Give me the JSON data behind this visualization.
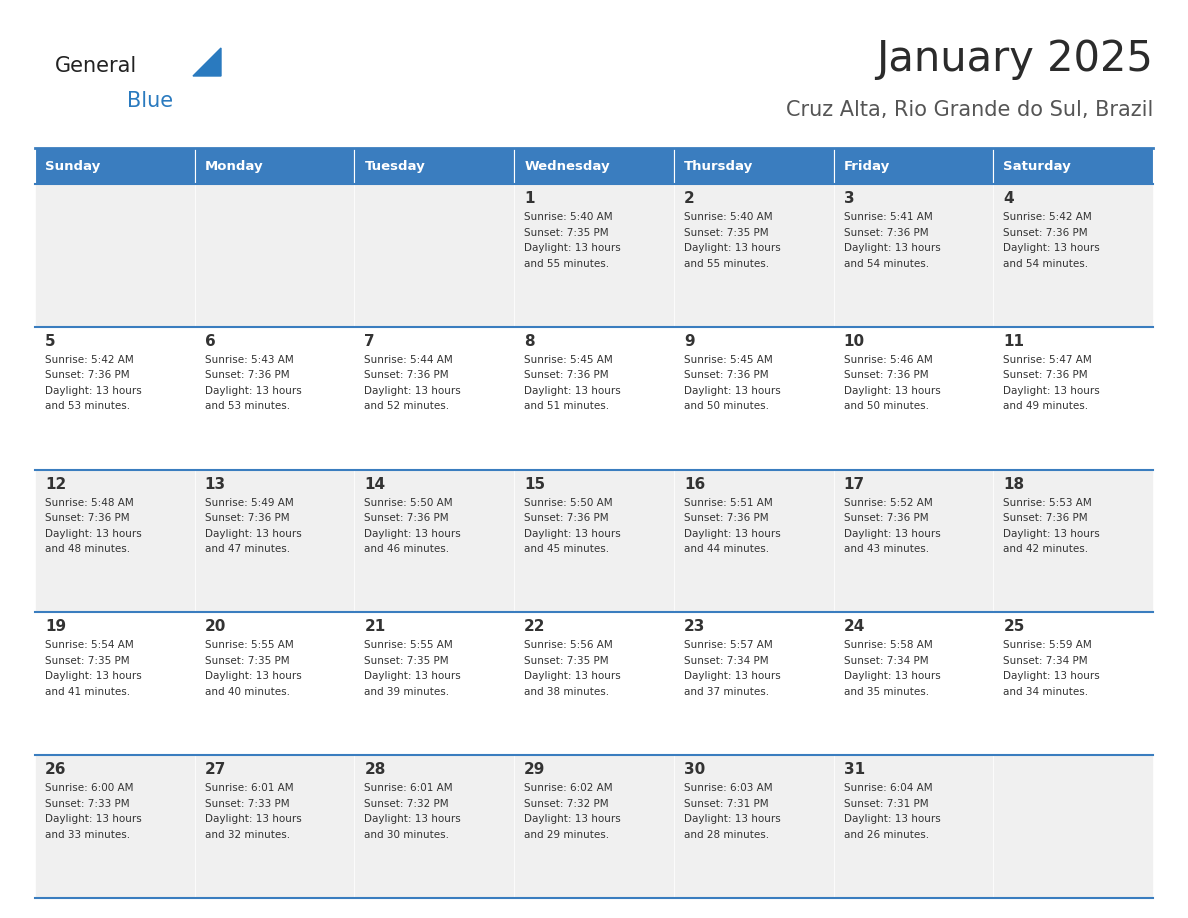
{
  "title": "January 2025",
  "subtitle": "Cruz Alta, Rio Grande do Sul, Brazil",
  "days_of_week": [
    "Sunday",
    "Monday",
    "Tuesday",
    "Wednesday",
    "Thursday",
    "Friday",
    "Saturday"
  ],
  "header_bg": "#3a7dbf",
  "header_text_color": "#ffffff",
  "row_bg_odd": "#f0f0f0",
  "row_bg_even": "#ffffff",
  "cell_text_color": "#333333",
  "border_color": "#3a7dbf",
  "title_color": "#2b2b2b",
  "subtitle_color": "#555555",
  "logo_general_color": "#222222",
  "logo_blue_color": "#2a7abf",
  "calendar_data": [
    {
      "day": 1,
      "col": 3,
      "row": 0,
      "sunrise": "5:40 AM",
      "sunset": "7:35 PM",
      "daylight": "13 hours and 55 minutes."
    },
    {
      "day": 2,
      "col": 4,
      "row": 0,
      "sunrise": "5:40 AM",
      "sunset": "7:35 PM",
      "daylight": "13 hours and 55 minutes."
    },
    {
      "day": 3,
      "col": 5,
      "row": 0,
      "sunrise": "5:41 AM",
      "sunset": "7:36 PM",
      "daylight": "13 hours and 54 minutes."
    },
    {
      "day": 4,
      "col": 6,
      "row": 0,
      "sunrise": "5:42 AM",
      "sunset": "7:36 PM",
      "daylight": "13 hours and 54 minutes."
    },
    {
      "day": 5,
      "col": 0,
      "row": 1,
      "sunrise": "5:42 AM",
      "sunset": "7:36 PM",
      "daylight": "13 hours and 53 minutes."
    },
    {
      "day": 6,
      "col": 1,
      "row": 1,
      "sunrise": "5:43 AM",
      "sunset": "7:36 PM",
      "daylight": "13 hours and 53 minutes."
    },
    {
      "day": 7,
      "col": 2,
      "row": 1,
      "sunrise": "5:44 AM",
      "sunset": "7:36 PM",
      "daylight": "13 hours and 52 minutes."
    },
    {
      "day": 8,
      "col": 3,
      "row": 1,
      "sunrise": "5:45 AM",
      "sunset": "7:36 PM",
      "daylight": "13 hours and 51 minutes."
    },
    {
      "day": 9,
      "col": 4,
      "row": 1,
      "sunrise": "5:45 AM",
      "sunset": "7:36 PM",
      "daylight": "13 hours and 50 minutes."
    },
    {
      "day": 10,
      "col": 5,
      "row": 1,
      "sunrise": "5:46 AM",
      "sunset": "7:36 PM",
      "daylight": "13 hours and 50 minutes."
    },
    {
      "day": 11,
      "col": 6,
      "row": 1,
      "sunrise": "5:47 AM",
      "sunset": "7:36 PM",
      "daylight": "13 hours and 49 minutes."
    },
    {
      "day": 12,
      "col": 0,
      "row": 2,
      "sunrise": "5:48 AM",
      "sunset": "7:36 PM",
      "daylight": "13 hours and 48 minutes."
    },
    {
      "day": 13,
      "col": 1,
      "row": 2,
      "sunrise": "5:49 AM",
      "sunset": "7:36 PM",
      "daylight": "13 hours and 47 minutes."
    },
    {
      "day": 14,
      "col": 2,
      "row": 2,
      "sunrise": "5:50 AM",
      "sunset": "7:36 PM",
      "daylight": "13 hours and 46 minutes."
    },
    {
      "day": 15,
      "col": 3,
      "row": 2,
      "sunrise": "5:50 AM",
      "sunset": "7:36 PM",
      "daylight": "13 hours and 45 minutes."
    },
    {
      "day": 16,
      "col": 4,
      "row": 2,
      "sunrise": "5:51 AM",
      "sunset": "7:36 PM",
      "daylight": "13 hours and 44 minutes."
    },
    {
      "day": 17,
      "col": 5,
      "row": 2,
      "sunrise": "5:52 AM",
      "sunset": "7:36 PM",
      "daylight": "13 hours and 43 minutes."
    },
    {
      "day": 18,
      "col": 6,
      "row": 2,
      "sunrise": "5:53 AM",
      "sunset": "7:36 PM",
      "daylight": "13 hours and 42 minutes."
    },
    {
      "day": 19,
      "col": 0,
      "row": 3,
      "sunrise": "5:54 AM",
      "sunset": "7:35 PM",
      "daylight": "13 hours and 41 minutes."
    },
    {
      "day": 20,
      "col": 1,
      "row": 3,
      "sunrise": "5:55 AM",
      "sunset": "7:35 PM",
      "daylight": "13 hours and 40 minutes."
    },
    {
      "day": 21,
      "col": 2,
      "row": 3,
      "sunrise": "5:55 AM",
      "sunset": "7:35 PM",
      "daylight": "13 hours and 39 minutes."
    },
    {
      "day": 22,
      "col": 3,
      "row": 3,
      "sunrise": "5:56 AM",
      "sunset": "7:35 PM",
      "daylight": "13 hours and 38 minutes."
    },
    {
      "day": 23,
      "col": 4,
      "row": 3,
      "sunrise": "5:57 AM",
      "sunset": "7:34 PM",
      "daylight": "13 hours and 37 minutes."
    },
    {
      "day": 24,
      "col": 5,
      "row": 3,
      "sunrise": "5:58 AM",
      "sunset": "7:34 PM",
      "daylight": "13 hours and 35 minutes."
    },
    {
      "day": 25,
      "col": 6,
      "row": 3,
      "sunrise": "5:59 AM",
      "sunset": "7:34 PM",
      "daylight": "13 hours and 34 minutes."
    },
    {
      "day": 26,
      "col": 0,
      "row": 4,
      "sunrise": "6:00 AM",
      "sunset": "7:33 PM",
      "daylight": "13 hours and 33 minutes."
    },
    {
      "day": 27,
      "col": 1,
      "row": 4,
      "sunrise": "6:01 AM",
      "sunset": "7:33 PM",
      "daylight": "13 hours and 32 minutes."
    },
    {
      "day": 28,
      "col": 2,
      "row": 4,
      "sunrise": "6:01 AM",
      "sunset": "7:32 PM",
      "daylight": "13 hours and 30 minutes."
    },
    {
      "day": 29,
      "col": 3,
      "row": 4,
      "sunrise": "6:02 AM",
      "sunset": "7:32 PM",
      "daylight": "13 hours and 29 minutes."
    },
    {
      "day": 30,
      "col": 4,
      "row": 4,
      "sunrise": "6:03 AM",
      "sunset": "7:31 PM",
      "daylight": "13 hours and 28 minutes."
    },
    {
      "day": 31,
      "col": 5,
      "row": 4,
      "sunrise": "6:04 AM",
      "sunset": "7:31 PM",
      "daylight": "13 hours and 26 minutes."
    }
  ],
  "fig_width": 11.88,
  "fig_height": 9.18,
  "fig_dpi": 100
}
